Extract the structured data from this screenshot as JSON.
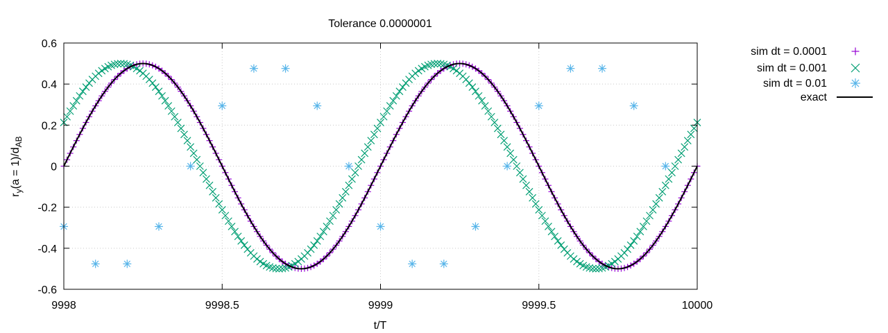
{
  "chart_data": {
    "type": "scatter",
    "title": "Tolerance 0.0000001",
    "xlabel": "t/T",
    "ylabel_parts": {
      "r": "r",
      "sub_y": "y",
      "mid": "(a = 1)/d",
      "sub_ab": "AB"
    },
    "xlim": [
      9998,
      10000
    ],
    "ylim": [
      -0.6,
      0.6
    ],
    "xticks": [
      9998,
      9998.5,
      9999,
      9999.5,
      10000
    ],
    "xtick_labels": [
      "9998",
      "9998.5",
      "9999",
      "9999.5",
      "10000"
    ],
    "yticks": [
      -0.6,
      -0.4,
      -0.2,
      0,
      0.2,
      0.4,
      0.6
    ],
    "ytick_labels": [
      "-0.6",
      "-0.4",
      "-0.2",
      "0",
      "0.2",
      "0.4",
      "0.6"
    ],
    "grid": true,
    "legend_position": "outside-right-top",
    "series": [
      {
        "name": "sim dt = 0.0001",
        "marker": "plus",
        "color": "#9400d3",
        "x_start": 9998.0,
        "x_step": 0.01,
        "n_points": 201,
        "y": "0.5*sin(2*pi*t/T)"
      },
      {
        "name": "sim dt = 0.001",
        "marker": "cross",
        "color": "#009e73",
        "x_start": 9998.0,
        "x_step": 0.01,
        "n_points": 201,
        "phase_shift_periods": 0.07,
        "y": "0.5*sin(2*pi*(t/T + 0.07))"
      },
      {
        "name": "sim dt = 0.01",
        "marker": "asterisk",
        "color": "#56b4e9",
        "x": [
          9998.0,
          9998.1,
          9998.2,
          9998.3,
          9998.4,
          9998.5,
          9998.6,
          9998.7,
          9998.8,
          9998.9,
          9999.0,
          9999.1,
          9999.2,
          9999.3,
          9999.4,
          9999.5,
          9999.6,
          9999.7,
          9999.8,
          9999.9
        ],
        "y": [
          -0.294,
          -0.476,
          -0.476,
          -0.294,
          0.0,
          0.294,
          0.476,
          0.476,
          0.294,
          0.0,
          -0.294,
          -0.476,
          -0.476,
          -0.294,
          0.0,
          0.294,
          0.476,
          0.476,
          0.294,
          0.0
        ]
      },
      {
        "name": "exact",
        "marker": "line",
        "color": "#000000",
        "y": "0.5*sin(2*pi*t/T)"
      }
    ]
  }
}
